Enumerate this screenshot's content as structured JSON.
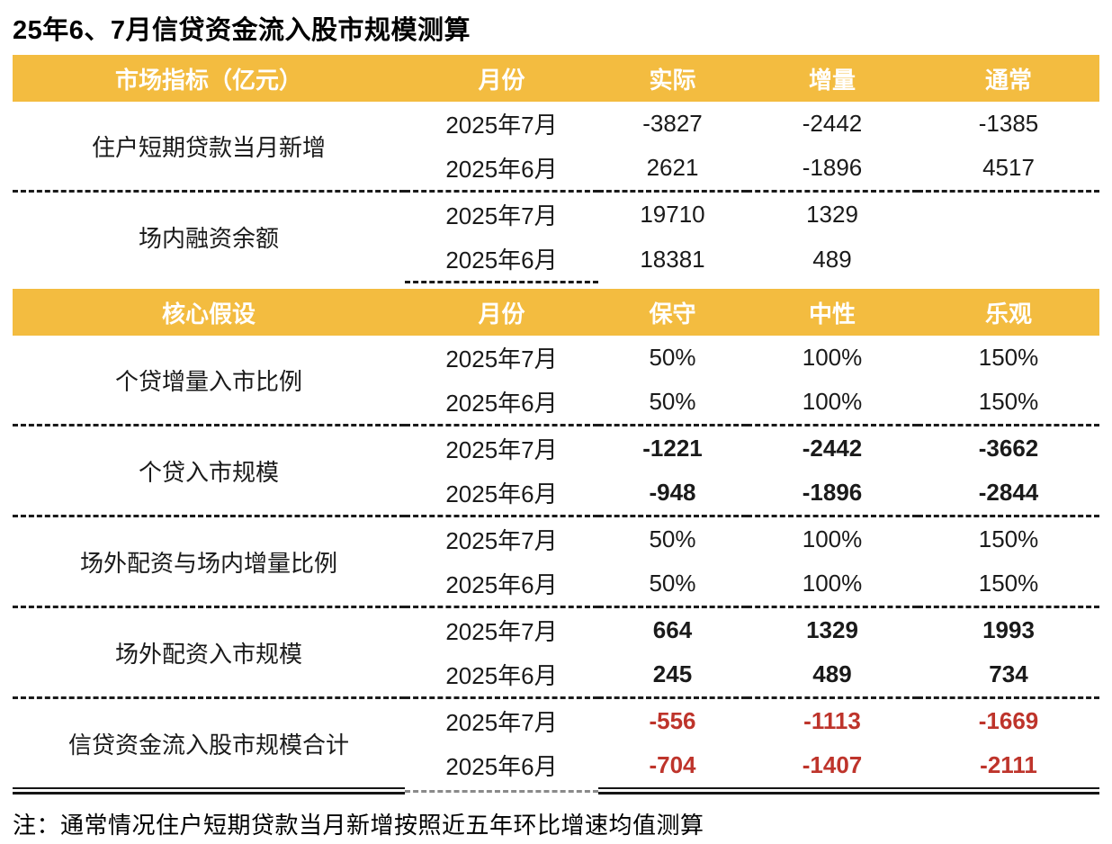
{
  "title": "25年6、7月信贷资金流入股市规模测算",
  "note": "注：通常情况住户短期贷款当月新增按照近五年环比增速均值测算",
  "colors": {
    "header_bg": "#F3BC40",
    "header_text": "#FFFFFF",
    "body_text": "#1A1A1A",
    "total_negative_red": "#BE342B"
  },
  "section1": {
    "header": {
      "c1": "市场指标（亿元）",
      "c2": "月份",
      "c3": "实际",
      "c4": "增量",
      "c5": "通常"
    },
    "groups": [
      {
        "label": "住户短期贷款当月新增",
        "rows": [
          {
            "month": "2025年7月",
            "v1": "-3827",
            "v2": "-2442",
            "v3": "-1385"
          },
          {
            "month": "2025年6月",
            "v1": "2621",
            "v2": "-1896",
            "v3": "4517"
          }
        ]
      },
      {
        "label": "场内融资余额",
        "rows": [
          {
            "month": "2025年7月",
            "v1": "19710",
            "v2": "1329",
            "v3": ""
          },
          {
            "month": "2025年6月",
            "v1": "18381",
            "v2": "489",
            "v3": ""
          }
        ]
      }
    ]
  },
  "section2": {
    "header": {
      "c1": "核心假设",
      "c2": "月份",
      "c3": "保守",
      "c4": "中性",
      "c5": "乐观"
    },
    "groups": [
      {
        "label": "个贷增量入市比例",
        "rows": [
          {
            "month": "2025年7月",
            "v1": "50%",
            "v2": "100%",
            "v3": "150%"
          },
          {
            "month": "2025年6月",
            "v1": "50%",
            "v2": "100%",
            "v3": "150%"
          }
        ]
      },
      {
        "label": "个贷入市规模",
        "rows": [
          {
            "month": "2025年7月",
            "v1": "-1221",
            "v2": "-2442",
            "v3": "-3662"
          },
          {
            "month": "2025年6月",
            "v1": "-948",
            "v2": "-1896",
            "v3": "-2844"
          }
        ]
      },
      {
        "label": "场外配资与场内增量比例",
        "rows": [
          {
            "month": "2025年7月",
            "v1": "50%",
            "v2": "100%",
            "v3": "150%"
          },
          {
            "month": "2025年6月",
            "v1": "50%",
            "v2": "100%",
            "v3": "150%"
          }
        ]
      },
      {
        "label": "场外配资入市规模",
        "rows": [
          {
            "month": "2025年7月",
            "v1": "664",
            "v2": "1329",
            "v3": "1993"
          },
          {
            "month": "2025年6月",
            "v1": "245",
            "v2": "489",
            "v3": "734"
          }
        ]
      },
      {
        "label": "信贷资金流入股市规模合计",
        "rows": [
          {
            "month": "2025年7月",
            "v1": "-556",
            "v2": "-1113",
            "v3": "-1669"
          },
          {
            "month": "2025年6月",
            "v1": "-704",
            "v2": "-1407",
            "v3": "-2111"
          }
        ]
      }
    ]
  }
}
